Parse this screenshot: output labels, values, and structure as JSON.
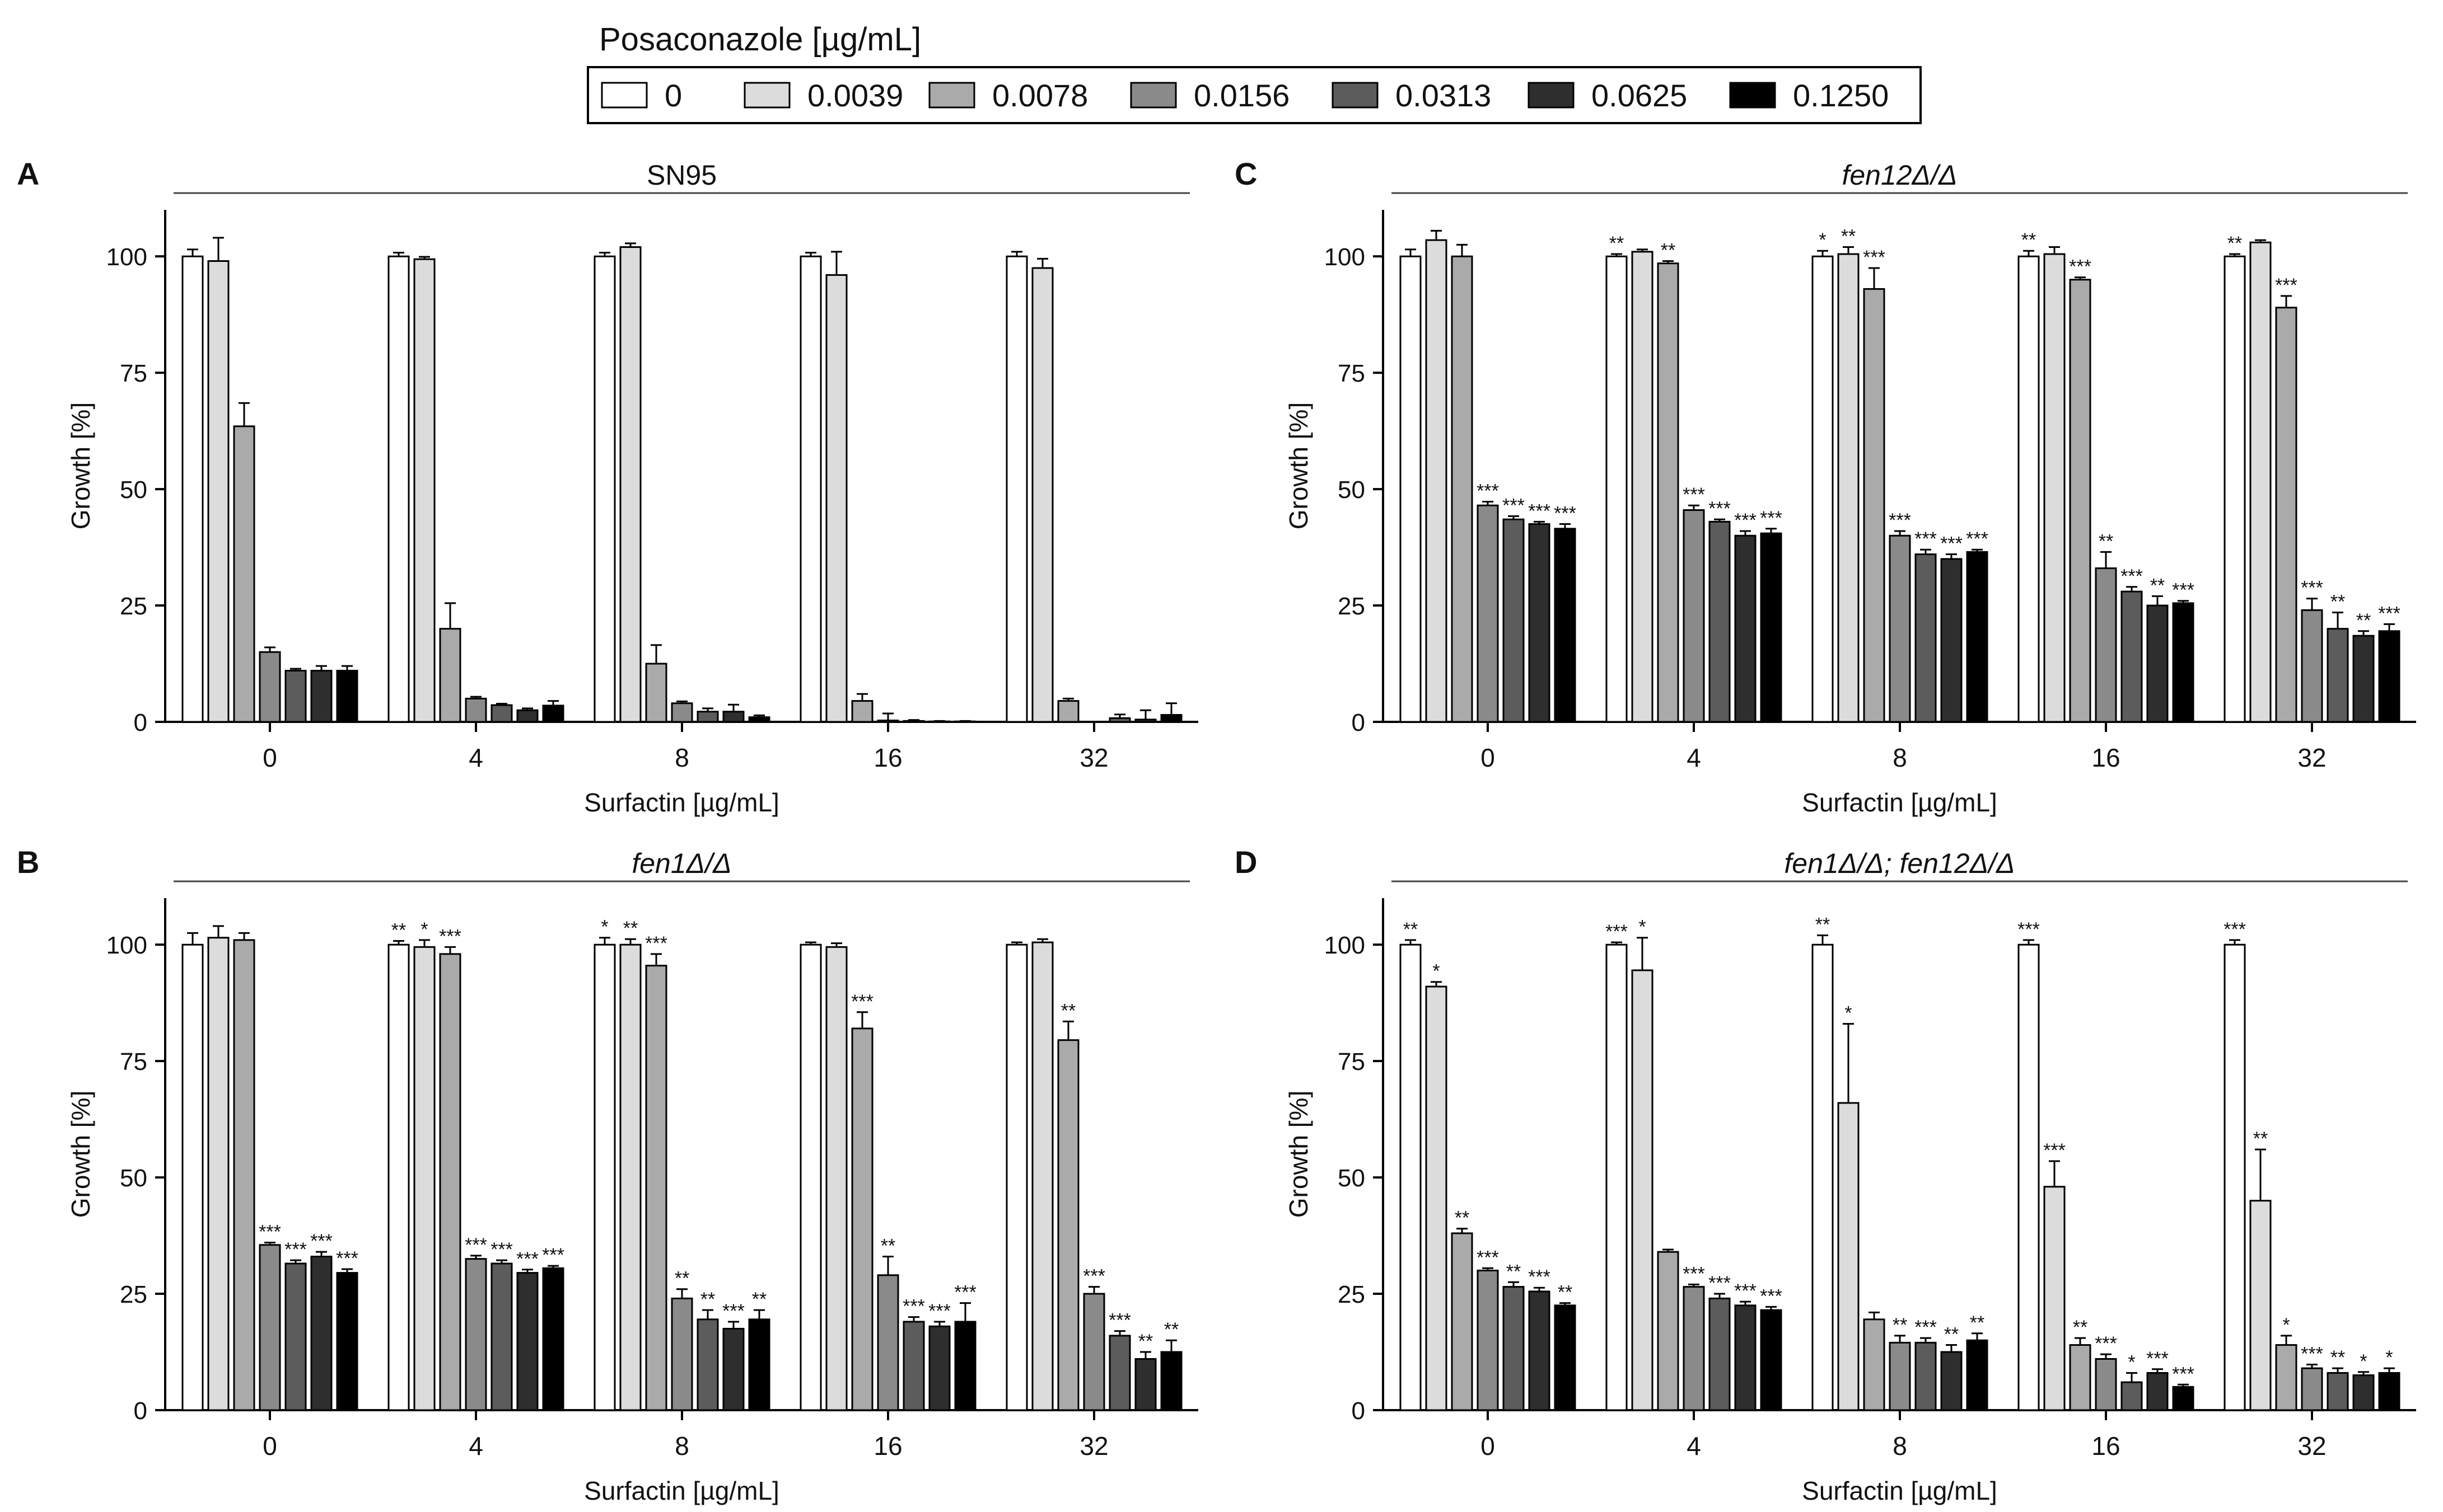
{
  "legend": {
    "title": "Posaconazole [µg/mL]",
    "items": [
      "0",
      "0.0039",
      "0.0078",
      "0.0156",
      "0.0313",
      "0.0625",
      "0.1250"
    ]
  },
  "colors": [
    "#ffffff",
    "#dcdcdc",
    "#aaaaaa",
    "#8a8a8a",
    "#5c5c5c",
    "#2e2e2e",
    "#000000"
  ],
  "chart_data": [
    {
      "panel": "A",
      "type": "bar",
      "title": "SN95",
      "xlabel": "Surfactin [µg/mL]",
      "ylabel": "Growth [%]",
      "ylim": [
        0,
        110
      ],
      "yticks": [
        "0",
        "25",
        "50",
        "75",
        "100"
      ],
      "categories": [
        "0",
        "4",
        "8",
        "16",
        "32"
      ],
      "series": [
        {
          "name": "0",
          "values": [
            100,
            100,
            100,
            100,
            100
          ],
          "errors": [
            1.5,
            0.8,
            0.8,
            0.8,
            1
          ],
          "sig": [
            "",
            "",
            "",
            "",
            ""
          ]
        },
        {
          "name": "0.0039",
          "values": [
            99,
            99.4,
            102,
            96,
            97.5
          ],
          "errors": [
            5,
            0.5,
            0.8,
            5,
            2
          ],
          "sig": [
            "",
            "",
            "",
            "",
            ""
          ]
        },
        {
          "name": "0.0078",
          "values": [
            63.5,
            20,
            12.5,
            4.5,
            4.5
          ],
          "errors": [
            5,
            5.5,
            4,
            1.5,
            0.5
          ],
          "sig": [
            "",
            "",
            "",
            "",
            ""
          ]
        },
        {
          "name": "0.0156",
          "values": [
            15,
            5,
            4,
            0.3,
            0
          ],
          "errors": [
            1,
            0.4,
            0.4,
            1.5,
            0
          ],
          "sig": [
            "",
            "",
            "",
            "",
            ""
          ]
        },
        {
          "name": "0.0313",
          "values": [
            11,
            3.6,
            2.2,
            0.2,
            0.8
          ],
          "errors": [
            0.4,
            0.3,
            0.7,
            0.2,
            0.8
          ],
          "sig": [
            "",
            "",
            "",
            "",
            ""
          ]
        },
        {
          "name": "0.0625",
          "values": [
            11,
            2.5,
            2.2,
            0.1,
            0.5
          ],
          "errors": [
            1,
            0.4,
            1.5,
            0.1,
            2
          ],
          "sig": [
            "",
            "",
            "",
            "",
            ""
          ]
        },
        {
          "name": "0.1250",
          "values": [
            11,
            3.5,
            1,
            0.1,
            1.5
          ],
          "errors": [
            1,
            1,
            0.4,
            0.1,
            2.5
          ],
          "sig": [
            "",
            "",
            "",
            "",
            ""
          ]
        }
      ]
    },
    {
      "panel": "B",
      "type": "bar",
      "title": "fen1Δ/Δ",
      "xlabel": "Surfactin [µg/mL]",
      "ylabel": "Growth [%]",
      "ylim": [
        0,
        110
      ],
      "yticks": [
        "0",
        "25",
        "50",
        "75",
        "100"
      ],
      "categories": [
        "0",
        "4",
        "8",
        "16",
        "32"
      ],
      "series": [
        {
          "name": "0",
          "values": [
            100,
            100,
            100,
            100,
            100
          ],
          "errors": [
            2.5,
            0.8,
            1.5,
            0.5,
            0.5
          ],
          "sig": [
            "",
            "**",
            "*",
            "",
            ""
          ]
        },
        {
          "name": "0.0039",
          "values": [
            101.5,
            99.5,
            100,
            99.5,
            100.5
          ],
          "errors": [
            2.5,
            1.5,
            1.2,
            0.8,
            0.7
          ],
          "sig": [
            "",
            "*",
            "**",
            "",
            ""
          ]
        },
        {
          "name": "0.0078",
          "values": [
            101,
            98,
            95.5,
            82,
            79.5
          ],
          "errors": [
            1.5,
            1.5,
            2.5,
            3.5,
            4
          ],
          "sig": [
            "",
            "***",
            "***",
            "***",
            "**"
          ]
        },
        {
          "name": "0.0156",
          "values": [
            35.5,
            32.5,
            24,
            29,
            25
          ],
          "errors": [
            0.5,
            0.7,
            2,
            4,
            1.5
          ],
          "sig": [
            "***",
            "***",
            "**",
            "**",
            "***"
          ]
        },
        {
          "name": "0.0313",
          "values": [
            31.5,
            31.5,
            19.5,
            19,
            16
          ],
          "errors": [
            0.7,
            0.7,
            2,
            1,
            1
          ],
          "sig": [
            "***",
            "***",
            "**",
            "***",
            "***"
          ]
        },
        {
          "name": "0.0625",
          "values": [
            33,
            29.5,
            17.5,
            18,
            11
          ],
          "errors": [
            1,
            0.7,
            1.5,
            1,
            1.5
          ],
          "sig": [
            "***",
            "***",
            "***",
            "***",
            "**"
          ]
        },
        {
          "name": "0.1250",
          "values": [
            29.5,
            30.5,
            19.5,
            19,
            12.5
          ],
          "errors": [
            0.8,
            0.5,
            2,
            4,
            2.5
          ],
          "sig": [
            "***",
            "***",
            "**",
            "***",
            "**"
          ]
        }
      ]
    },
    {
      "panel": "C",
      "type": "bar",
      "title": "fen12Δ/Δ",
      "xlabel": "Surfactin [µg/mL]",
      "ylabel": "Growth [%]",
      "ylim": [
        0,
        110
      ],
      "yticks": [
        "0",
        "25",
        "50",
        "75",
        "100"
      ],
      "categories": [
        "0",
        "4",
        "8",
        "16",
        "32"
      ],
      "series": [
        {
          "name": "0",
          "values": [
            100,
            100,
            100,
            100,
            100
          ],
          "errors": [
            1.5,
            0.5,
            1.2,
            1.2,
            0.5
          ],
          "sig": [
            "",
            "**",
            "*",
            "**",
            "**"
          ]
        },
        {
          "name": "0.0039",
          "values": [
            103.5,
            101,
            100.5,
            100.5,
            103
          ],
          "errors": [
            2,
            0.5,
            1.5,
            1.5,
            0.5
          ],
          "sig": [
            "",
            "",
            "**",
            "",
            ""
          ]
        },
        {
          "name": "0.0078",
          "values": [
            100,
            98.5,
            93,
            95,
            89
          ],
          "errors": [
            2.5,
            0.5,
            4.5,
            0.5,
            2.5
          ],
          "sig": [
            "",
            "**",
            "***",
            "***",
            "***"
          ]
        },
        {
          "name": "0.0156",
          "values": [
            46.5,
            45.5,
            40,
            33,
            24
          ],
          "errors": [
            0.8,
            1,
            1,
            3.5,
            2.5
          ],
          "sig": [
            "***",
            "***",
            "***",
            "**",
            "***"
          ]
        },
        {
          "name": "0.0313",
          "values": [
            43.5,
            43,
            36,
            28,
            20
          ],
          "errors": [
            0.7,
            0.5,
            1,
            1,
            3.5
          ],
          "sig": [
            "***",
            "***",
            "***",
            "***",
            "**"
          ]
        },
        {
          "name": "0.0625",
          "values": [
            42.5,
            40,
            35,
            25,
            18.5
          ],
          "errors": [
            0.5,
            1,
            1,
            2,
            1
          ],
          "sig": [
            "***",
            "***",
            "***",
            "**",
            "**"
          ]
        },
        {
          "name": "0.1250",
          "values": [
            41.5,
            40.5,
            36.5,
            25.5,
            19.5
          ],
          "errors": [
            1,
            1,
            0.5,
            0.5,
            1.5
          ],
          "sig": [
            "***",
            "***",
            "***",
            "***",
            "***"
          ]
        }
      ]
    },
    {
      "panel": "D",
      "type": "bar",
      "title": "fen1Δ/Δ; fen12Δ/Δ",
      "xlabel": "Surfactin [µg/mL]",
      "ylabel": "Growth [%]",
      "ylim": [
        0,
        110
      ],
      "yticks": [
        "0",
        "25",
        "50",
        "75",
        "100"
      ],
      "categories": [
        "0",
        "4",
        "8",
        "16",
        "32"
      ],
      "series": [
        {
          "name": "0",
          "values": [
            100,
            100,
            100,
            100,
            100
          ],
          "errors": [
            1,
            0.5,
            2,
            1,
            1
          ],
          "sig": [
            "**",
            "***",
            "**",
            "***",
            "***"
          ]
        },
        {
          "name": "0.0039",
          "values": [
            91,
            94.5,
            66,
            48,
            45
          ],
          "errors": [
            1,
            7,
            17,
            5.5,
            11
          ],
          "sig": [
            "*",
            "*",
            "*",
            "***",
            "**"
          ]
        },
        {
          "name": "0.0078",
          "values": [
            38,
            34,
            19.5,
            14,
            14
          ],
          "errors": [
            1,
            0.5,
            1.5,
            1.5,
            2
          ],
          "sig": [
            "**",
            "",
            "",
            "**",
            "*"
          ]
        },
        {
          "name": "0.0156",
          "values": [
            30,
            26.5,
            14.5,
            11,
            9
          ],
          "errors": [
            0.5,
            0.5,
            1.5,
            1,
            0.8
          ],
          "sig": [
            "***",
            "***",
            "**",
            "***",
            "***"
          ]
        },
        {
          "name": "0.0313",
          "values": [
            26.5,
            24,
            14.5,
            6,
            8
          ],
          "errors": [
            1,
            1,
            1,
            2,
            1
          ],
          "sig": [
            "**",
            "***",
            "***",
            "*",
            "**"
          ]
        },
        {
          "name": "0.0625",
          "values": [
            25.5,
            22.5,
            12.5,
            8,
            7.5
          ],
          "errors": [
            0.8,
            0.8,
            1.5,
            0.8,
            0.7
          ],
          "sig": [
            "***",
            "***",
            "**",
            "***",
            "*"
          ]
        },
        {
          "name": "0.1250",
          "values": [
            22.5,
            21.5,
            15,
            5,
            8
          ],
          "errors": [
            0.5,
            0.7,
            1.5,
            0.5,
            1
          ],
          "sig": [
            "**",
            "***",
            "**",
            "***",
            "*"
          ]
        }
      ]
    }
  ]
}
